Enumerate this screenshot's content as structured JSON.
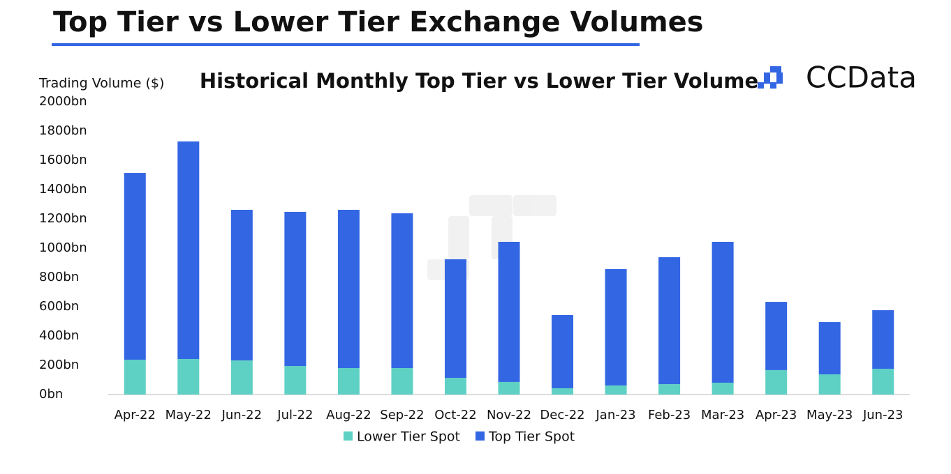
{
  "chart_data": {
    "type": "stacked_bar",
    "title": "Top Tier vs Lower Tier Exchange Volumes",
    "subtitle": "Historical Monthly Top Tier vs Lower Tier Volume",
    "brand": "CCData",
    "y_label": "Trading Volume ($)",
    "categories": [
      "Apr-22",
      "May-22",
      "Jun-22",
      "Jul-22",
      "Aug-22",
      "Sep-22",
      "Oct-22",
      "Nov-22",
      "Dec-22",
      "Jan-23",
      "Feb-23",
      "Mar-23",
      "Apr-23",
      "May-23",
      "Jun-23"
    ],
    "series": [
      {
        "name": "Lower Tier Spot",
        "color": "#5fd0c4",
        "values": [
          238,
          243,
          233,
          195,
          181,
          181,
          114,
          86,
          43,
          62,
          71,
          81,
          167,
          138,
          176
        ]
      },
      {
        "name": "Top Tier Spot",
        "color": "#3366e3",
        "values": [
          1276,
          1486,
          1029,
          1053,
          1081,
          1057,
          810,
          957,
          500,
          795,
          867,
          962,
          466,
          357,
          400
        ]
      }
    ],
    "ylim": [
      0,
      2000
    ],
    "yticks": [
      {
        "value": 0,
        "label": "0bn"
      },
      {
        "value": 200,
        "label": "200bn"
      },
      {
        "value": 400,
        "label": "400bn"
      },
      {
        "value": 600,
        "label": "600bn"
      },
      {
        "value": 800,
        "label": "800bn"
      },
      {
        "value": 1000,
        "label": "1000bn"
      },
      {
        "value": 1200,
        "label": "1200bn"
      },
      {
        "value": 1400,
        "label": "1400bn"
      },
      {
        "value": 1600,
        "label": "1600bn"
      },
      {
        "value": 1800,
        "label": "1800bn"
      },
      {
        "value": 2000,
        "label": "2000bn"
      }
    ],
    "legend": "bottom"
  }
}
